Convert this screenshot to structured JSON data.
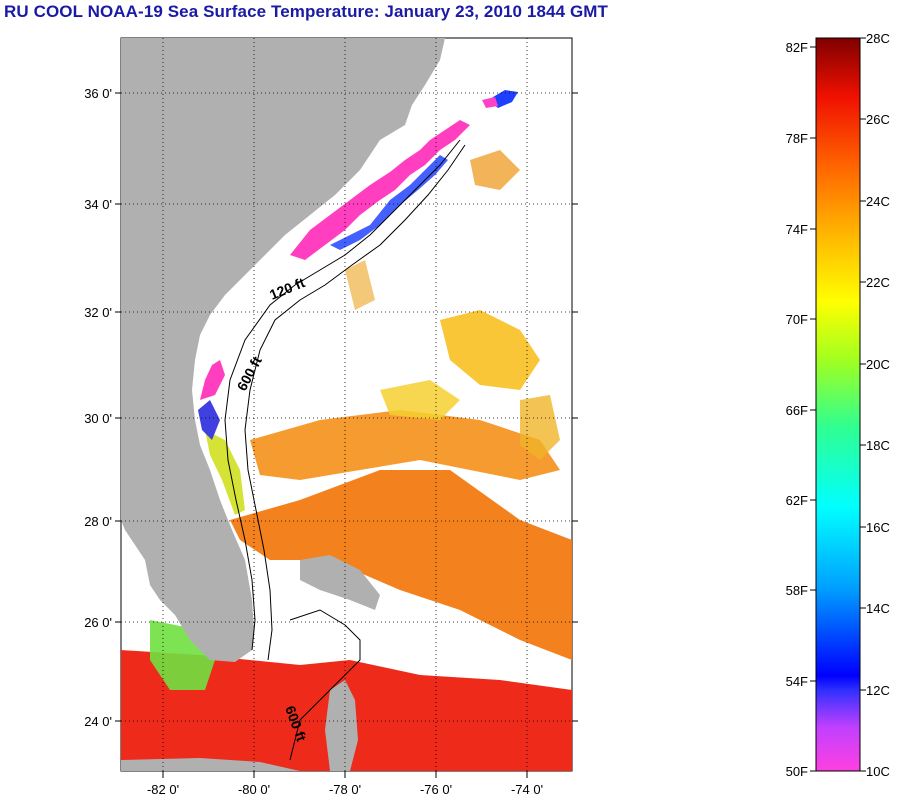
{
  "title": "RU COOL  NOAA-19  Sea Surface Temperature:  January 23, 2010 1844 GMT",
  "map": {
    "lat_labels": [
      "36 0'",
      "34 0'",
      "32 0'",
      "30 0'",
      "28 0'",
      "26 0'",
      "24 0'"
    ],
    "lon_labels": [
      "-82 0'",
      "-80 0'",
      "-78 0'",
      "-76 0'",
      "-74 0'"
    ],
    "contour_labels": [
      "120 ft",
      "600 ft",
      "600 ft"
    ],
    "colors": {
      "land": "#b0b0b0",
      "ocean_cloud": "#ffffff",
      "gulf_stream": "#f07010",
      "warm_south": "#ee2a1a",
      "coastal_cold": "#ff3fc0"
    }
  },
  "colorbar": {
    "fahrenheit": [
      "82F",
      "78F",
      "74F",
      "70F",
      "66F",
      "62F",
      "58F",
      "54F",
      "50F"
    ],
    "celsius": [
      "28C",
      "26C",
      "24C",
      "22C",
      "20C",
      "18C",
      "16C",
      "14C",
      "12C",
      "10C"
    ],
    "range_c": [
      10,
      28
    ],
    "range_f": [
      50,
      82.4
    ]
  }
}
